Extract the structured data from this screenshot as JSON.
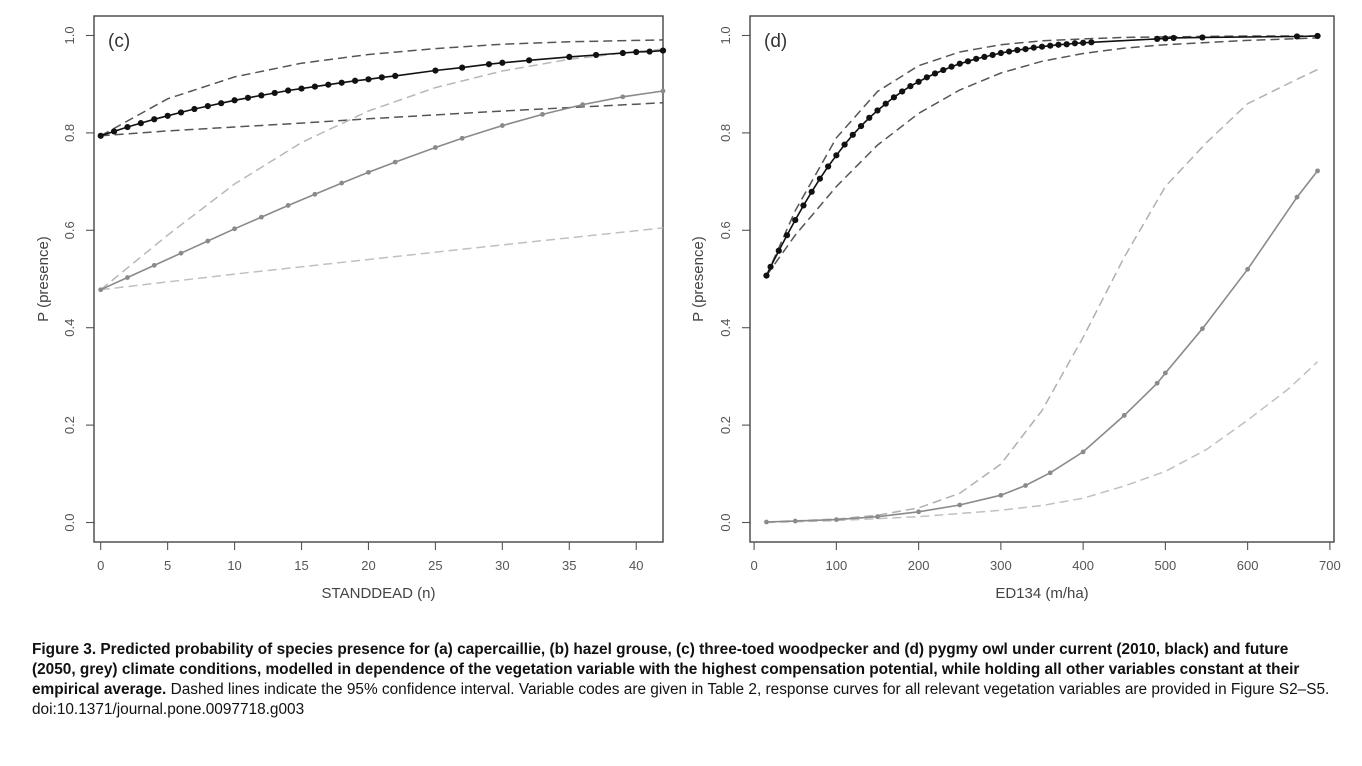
{
  "chart_data": [
    {
      "type": "line",
      "panel_label": "(c)",
      "xlabel": "STANDDEAD (n)",
      "ylabel": "P (presence)",
      "xlim": [
        -0.5,
        42
      ],
      "ylim": [
        -0.04,
        1.04
      ],
      "x_ticks": [
        0,
        5,
        10,
        15,
        20,
        25,
        30,
        35,
        40
      ],
      "y_ticks": [
        0.0,
        0.2,
        0.4,
        0.6,
        0.8,
        1.0
      ],
      "grid": false,
      "series": [
        {
          "style": "black-solid-markers",
          "color": "#111111",
          "markers": true,
          "x": [
            0,
            1,
            2,
            3,
            4,
            5,
            6,
            7,
            8,
            9,
            10,
            11,
            12,
            13,
            14,
            15,
            16,
            17,
            18,
            19,
            20,
            21,
            22,
            25,
            27,
            29,
            30,
            32,
            35,
            37,
            39,
            40,
            41,
            42
          ],
          "y": [
            0.794,
            0.803,
            0.812,
            0.82,
            0.828,
            0.835,
            0.842,
            0.849,
            0.855,
            0.861,
            0.867,
            0.872,
            0.877,
            0.882,
            0.887,
            0.891,
            0.895,
            0.899,
            0.903,
            0.907,
            0.91,
            0.914,
            0.917,
            0.928,
            0.934,
            0.941,
            0.944,
            0.949,
            0.956,
            0.96,
            0.964,
            0.966,
            0.967,
            0.969
          ]
        },
        {
          "style": "black-dashed-upper",
          "color": "#555555",
          "dashed": true,
          "x": [
            0,
            5,
            10,
            15,
            20,
            25,
            30,
            35,
            40,
            42
          ],
          "y": [
            0.794,
            0.87,
            0.915,
            0.943,
            0.961,
            0.973,
            0.982,
            0.987,
            0.99,
            0.991
          ]
        },
        {
          "style": "black-dashed-lower",
          "color": "#555555",
          "dashed": true,
          "x": [
            0,
            5,
            10,
            15,
            20,
            25,
            30,
            35,
            40,
            42
          ],
          "y": [
            0.794,
            0.804,
            0.812,
            0.82,
            0.829,
            0.837,
            0.845,
            0.852,
            0.859,
            0.862
          ]
        },
        {
          "style": "grey-solid-markers",
          "color": "#8a8a8a",
          "markers": true,
          "x": [
            0,
            2,
            4,
            6,
            8,
            10,
            12,
            14,
            16,
            18,
            20,
            22,
            25,
            27,
            30,
            33,
            36,
            39,
            42
          ],
          "y": [
            0.478,
            0.503,
            0.528,
            0.553,
            0.578,
            0.603,
            0.627,
            0.651,
            0.674,
            0.697,
            0.719,
            0.74,
            0.77,
            0.789,
            0.815,
            0.838,
            0.858,
            0.874,
            0.886
          ]
        },
        {
          "style": "grey-dashed-upper",
          "color": "#b8b8b8",
          "dashed": true,
          "x": [
            0,
            5,
            10,
            15,
            20,
            25,
            30,
            35,
            40,
            42
          ],
          "y": [
            0.478,
            0.59,
            0.695,
            0.78,
            0.845,
            0.893,
            0.927,
            0.951,
            0.967,
            0.972
          ]
        },
        {
          "style": "grey-dashed-lower",
          "color": "#c0c0c0",
          "dashed": true,
          "x": [
            0,
            10,
            20,
            30,
            42
          ],
          "y": [
            0.478,
            0.51,
            0.54,
            0.57,
            0.605
          ]
        }
      ]
    },
    {
      "type": "line",
      "panel_label": "(d)",
      "xlabel": "ED134 (m/ha)",
      "ylabel": "P (presence)",
      "xlim": [
        -5,
        705
      ],
      "ylim": [
        -0.04,
        1.04
      ],
      "x_ticks": [
        0,
        100,
        200,
        300,
        400,
        500,
        600,
        700
      ],
      "y_ticks": [
        0.0,
        0.2,
        0.4,
        0.6,
        0.8,
        1.0
      ],
      "grid": false,
      "series": [
        {
          "style": "black-solid-markers",
          "color": "#111111",
          "markers": true,
          "x": [
            15,
            20,
            30,
            40,
            50,
            60,
            70,
            80,
            90,
            100,
            110,
            120,
            130,
            140,
            150,
            160,
            170,
            180,
            190,
            200,
            210,
            220,
            230,
            240,
            250,
            260,
            270,
            280,
            290,
            300,
            310,
            320,
            330,
            340,
            350,
            360,
            370,
            380,
            390,
            400,
            410,
            490,
            500,
            510,
            545,
            660,
            685
          ],
          "y": [
            0.507,
            0.525,
            0.558,
            0.59,
            0.621,
            0.651,
            0.679,
            0.706,
            0.731,
            0.754,
            0.776,
            0.796,
            0.814,
            0.831,
            0.846,
            0.86,
            0.873,
            0.885,
            0.896,
            0.905,
            0.914,
            0.922,
            0.929,
            0.936,
            0.942,
            0.947,
            0.952,
            0.956,
            0.96,
            0.964,
            0.967,
            0.97,
            0.972,
            0.975,
            0.977,
            0.979,
            0.981,
            0.982,
            0.984,
            0.985,
            0.986,
            0.993,
            0.994,
            0.995,
            0.996,
            0.998,
            0.999
          ]
        },
        {
          "style": "black-dashed-upper",
          "color": "#555555",
          "dashed": true,
          "x": [
            15,
            50,
            100,
            150,
            200,
            250,
            300,
            350,
            400,
            450,
            500,
            600,
            685
          ],
          "y": [
            0.507,
            0.64,
            0.79,
            0.885,
            0.938,
            0.966,
            0.981,
            0.989,
            0.993,
            0.996,
            0.997,
            0.999,
            0.999
          ]
        },
        {
          "style": "black-dashed-lower",
          "color": "#555555",
          "dashed": true,
          "x": [
            15,
            50,
            100,
            150,
            200,
            250,
            300,
            350,
            400,
            450,
            500,
            600,
            685
          ],
          "y": [
            0.507,
            0.59,
            0.69,
            0.775,
            0.84,
            0.888,
            0.923,
            0.947,
            0.963,
            0.974,
            0.981,
            0.99,
            0.995
          ]
        },
        {
          "style": "grey-solid-markers",
          "color": "#8a8a8a",
          "markers": true,
          "x": [
            15,
            50,
            100,
            150,
            200,
            250,
            300,
            330,
            360,
            400,
            450,
            490,
            500,
            545,
            600,
            660,
            685
          ],
          "y": [
            0.001,
            0.003,
            0.006,
            0.012,
            0.022,
            0.036,
            0.056,
            0.076,
            0.102,
            0.145,
            0.22,
            0.286,
            0.307,
            0.398,
            0.52,
            0.668,
            0.722
          ]
        },
        {
          "style": "grey-dashed-upper",
          "color": "#b0b0b0",
          "dashed": true,
          "x": [
            15,
            100,
            150,
            200,
            250,
            300,
            350,
            400,
            450,
            500,
            550,
            600,
            660,
            685
          ],
          "y": [
            0.001,
            0.007,
            0.015,
            0.03,
            0.06,
            0.12,
            0.23,
            0.38,
            0.545,
            0.69,
            0.78,
            0.86,
            0.91,
            0.93
          ]
        },
        {
          "style": "grey-dashed-lower",
          "color": "#c0c0c0",
          "dashed": true,
          "x": [
            15,
            100,
            200,
            300,
            350,
            400,
            450,
            500,
            550,
            600,
            650,
            685
          ],
          "y": [
            0.0,
            0.004,
            0.012,
            0.025,
            0.035,
            0.05,
            0.075,
            0.105,
            0.15,
            0.21,
            0.275,
            0.33
          ]
        }
      ]
    }
  ],
  "caption": {
    "bold": "Figure 3. Predicted probability of species presence for (a) capercaillie, (b) hazel grouse, (c) three-toed woodpecker and (d) pygmy owl under current (2010, black) and future (2050, grey) climate conditions, modelled in dependence of the vegetation variable with the highest compensation potential, while holding all other variables constant at their empirical average.",
    "normal": " Dashed lines indicate the 95% confidence interval. Variable codes are given in Table 2, response curves for all relevant vegetation variables are provided in Figure S2–S5.",
    "doi": "doi:10.1371/journal.pone.0097718.g003"
  }
}
